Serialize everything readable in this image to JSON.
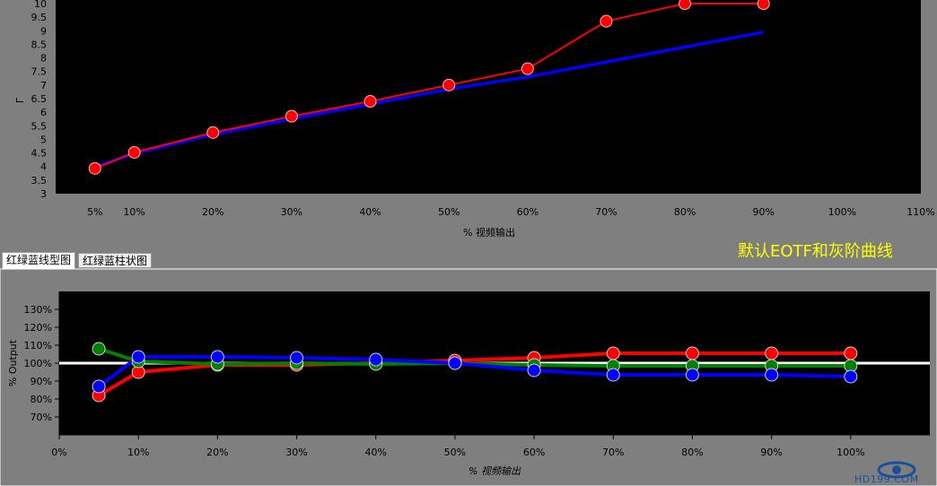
{
  "tabs": [
    {
      "label": "红绿蓝线型图",
      "active": true
    },
    {
      "label": "红绿蓝柱状图",
      "active": false
    }
  ],
  "caption": "默认EOTF和灰阶曲线",
  "watermark": {
    "text": "HD199.COM",
    "icon": "eye-logo-icon"
  },
  "colors": {
    "red": "#ff0000",
    "green": "#008000",
    "blue": "#0000ff",
    "reference": "#ffffff",
    "plot_bg": "#000000"
  },
  "chart_data": [
    {
      "type": "line",
      "title": "",
      "xlabel": "% 视频输出",
      "ylabel": "Γ",
      "xlim": [
        0,
        110
      ],
      "ylim": [
        3,
        10
      ],
      "x_ticks": [
        5,
        10,
        20,
        30,
        40,
        50,
        60,
        70,
        80,
        90,
        100,
        110
      ],
      "x_tick_labels": [
        "5%",
        "10%",
        "20%",
        "30%",
        "40%",
        "50%",
        "60%",
        "70%",
        "80%",
        "90%",
        "100%",
        "110%"
      ],
      "y_ticks": [
        3,
        3.5,
        4,
        4.5,
        5,
        5.5,
        6,
        6.5,
        7,
        7.5,
        8,
        8.5,
        9,
        9.5,
        10
      ],
      "y_tick_labels": [
        "3",
        "3.5",
        "4",
        "4.5",
        "5",
        "5.5",
        "6",
        "6.5",
        "7",
        "7.5",
        "8",
        "8.5",
        "9",
        "9.5",
        "10"
      ],
      "series": [
        {
          "color": "#ff0000",
          "markers": true,
          "x": [
            5,
            10,
            20,
            30,
            40,
            50,
            60,
            70,
            80,
            90
          ],
          "y": [
            3.93,
            4.52,
            5.25,
            5.85,
            6.4,
            7.0,
            7.6,
            9.35,
            10.0,
            10.0
          ]
        },
        {
          "color": "#0000ff",
          "markers": false,
          "x": [
            5,
            10,
            20,
            30,
            40,
            50,
            60,
            70,
            80,
            90
          ],
          "y": [
            3.98,
            4.48,
            5.18,
            5.75,
            6.3,
            6.85,
            7.3,
            7.85,
            8.4,
            8.95
          ]
        }
      ]
    },
    {
      "type": "line",
      "title": "",
      "xlabel": "% 视频输出",
      "ylabel": "% Output",
      "xlim": [
        0,
        110
      ],
      "ylim": [
        60,
        140
      ],
      "x_ticks": [
        0,
        10,
        20,
        30,
        40,
        50,
        60,
        70,
        80,
        90,
        100
      ],
      "x_tick_labels": [
        "0%",
        "10%",
        "20%",
        "30%",
        "40%",
        "50%",
        "60%",
        "70%",
        "80%",
        "90%",
        "100%"
      ],
      "y_ticks": [
        70,
        80,
        90,
        100,
        110,
        120,
        130
      ],
      "y_tick_labels": [
        "70%",
        "80%",
        "90%",
        "100%",
        "110%",
        "120%",
        "130%"
      ],
      "reference_line": 100,
      "series": [
        {
          "color": "#ff0000",
          "x": [
            5,
            10,
            20,
            30,
            40,
            50,
            60,
            70,
            80,
            90,
            100
          ],
          "y": [
            82,
            95,
            99,
            99,
            100,
            101.5,
            103,
            105.5,
            105.5,
            105.5,
            105.5
          ]
        },
        {
          "color": "#008000",
          "x": [
            5,
            10,
            20,
            30,
            40,
            50,
            60,
            70,
            80,
            90,
            100
          ],
          "y": [
            108,
            101,
            99.5,
            100,
            99.5,
            100,
            99,
            98.5,
            98.5,
            98.5,
            98.5
          ]
        },
        {
          "color": "#0000ff",
          "x": [
            5,
            10,
            20,
            30,
            40,
            50,
            60,
            70,
            80,
            90,
            100
          ],
          "y": [
            87,
            103.5,
            103.5,
            103,
            102,
            100,
            96,
            93.5,
            93.5,
            93.5,
            92.5
          ]
        }
      ]
    }
  ]
}
